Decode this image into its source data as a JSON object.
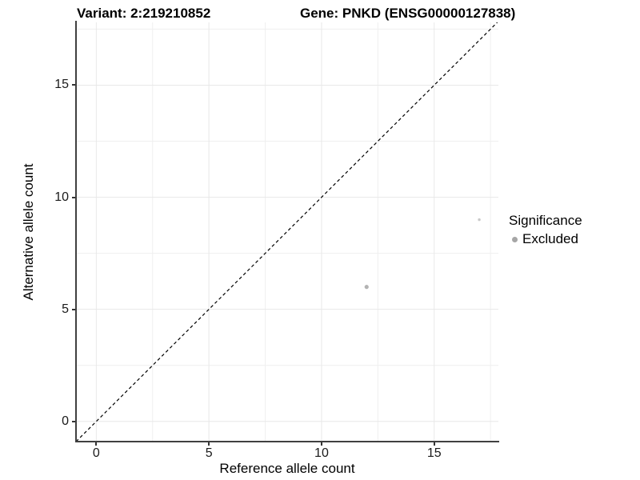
{
  "titles": {
    "left": "Variant: 2:219210852",
    "right": "Gene: PNKD (ENSG00000127838)"
  },
  "chart_data": {
    "type": "scatter",
    "title_left": "Variant: 2:219210852",
    "title_right": "Gene: PNKD (ENSG00000127838)",
    "xlabel": "Reference allele count",
    "ylabel": "Alternative allele count",
    "x_range": [
      -0.9,
      17.85
    ],
    "y_range": [
      -0.9,
      17.8
    ],
    "x_major_ticks": [
      0,
      5,
      10,
      15
    ],
    "y_major_ticks": [
      0,
      5,
      10,
      15
    ],
    "x_minor_gridlines": [
      2.5,
      7.5,
      12.5,
      17.5
    ],
    "y_minor_gridlines": [
      2.5,
      7.5,
      12.5,
      17.5
    ],
    "grid": true,
    "identity_line": {
      "style": "dashed",
      "color": "#000000",
      "slope": 1,
      "intercept": 0
    },
    "points": [
      {
        "x": 12,
        "y": 6,
        "size": 5.2,
        "color": "#b3b3b3"
      },
      {
        "x": 17,
        "y": 9,
        "size": 3.4,
        "color": "#c9c9c9"
      }
    ],
    "legend": {
      "position": "right",
      "title": "Significance",
      "items": [
        {
          "label": "Excluded",
          "color": "#a6a6a6"
        }
      ]
    }
  },
  "legend": {
    "title": "Significance",
    "item_label": "Excluded",
    "key_color": "#a6a6a6"
  },
  "colors": {
    "grid_major": "#e8e8e8",
    "grid_minor": "#efefef",
    "axis_line": "#404040",
    "dashed_line": "#000000"
  }
}
